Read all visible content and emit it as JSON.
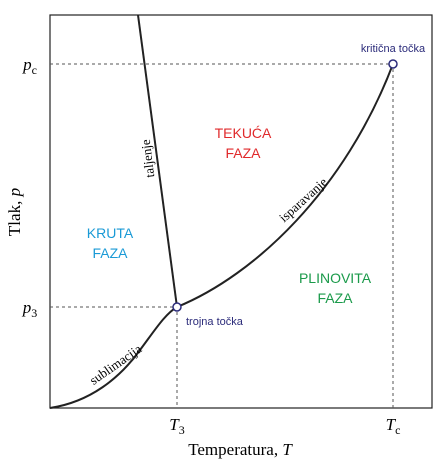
{
  "axes": {
    "y_title": {
      "text": "Tlak,",
      "symbol": "p"
    },
    "x_title": {
      "text": "Temperatura,",
      "symbol": "T"
    },
    "y_ticks": [
      {
        "symbol": "p",
        "subscript": "c"
      },
      {
        "symbol": "p",
        "subscript": "3"
      }
    ],
    "x_ticks": [
      {
        "symbol": "T",
        "subscript": "3"
      },
      {
        "symbol": "T",
        "subscript": "c"
      }
    ]
  },
  "phases": [
    {
      "lines": [
        "TEKUĆA",
        "FAZA"
      ]
    },
    {
      "lines": [
        "KRUTA",
        "FAZA"
      ]
    },
    {
      "lines": [
        "PLINOVITA",
        "FAZA"
      ]
    }
  ],
  "curves": {
    "melting": "taljenje",
    "vaporization": "isparavanje",
    "sublimation": "sublimacija"
  },
  "points": {
    "critical": "kritična točka",
    "triple": "trojna točka"
  }
}
